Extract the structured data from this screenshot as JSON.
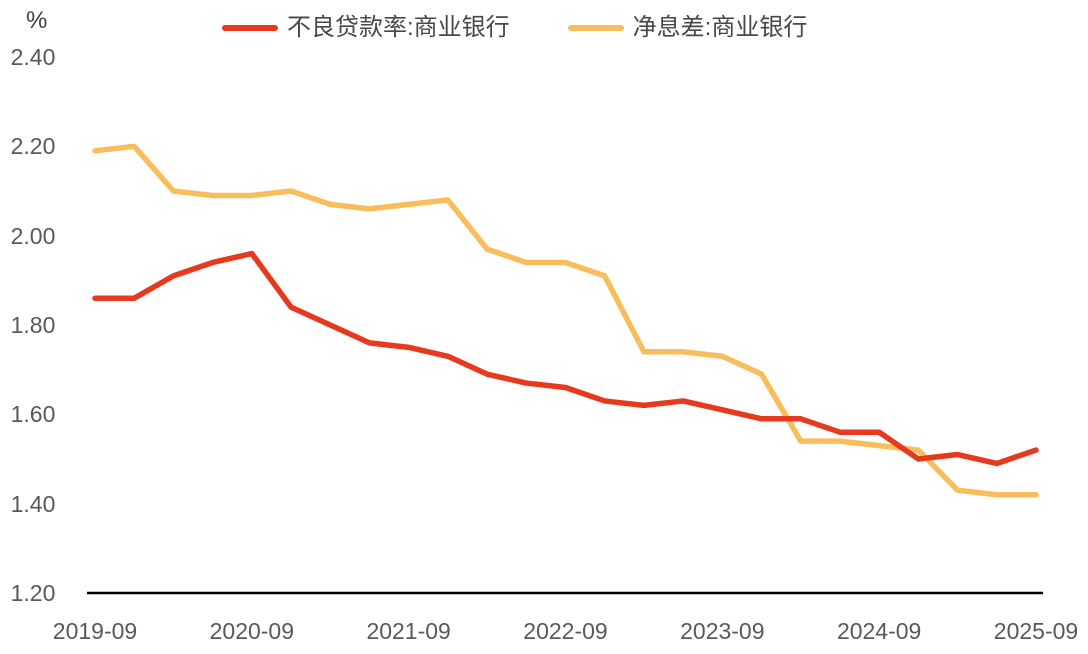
{
  "chart_data": {
    "type": "line",
    "title": "",
    "ylabel": "%",
    "xlabel": "",
    "ylim": [
      1.2,
      2.4
    ],
    "grid": false,
    "legend_position": "top-center",
    "yticks": [
      "2.40",
      "2.20",
      "2.00",
      "1.80",
      "1.60",
      "1.40",
      "1.20"
    ],
    "xticks": [
      "2019-09",
      "2020-09",
      "2021-09",
      "2022-09",
      "2023-09",
      "2024-09",
      "2025-09"
    ],
    "categories": [
      "2019-09",
      "2019-12",
      "2020-03",
      "2020-06",
      "2020-09",
      "2020-12",
      "2021-03",
      "2021-06",
      "2021-09",
      "2021-12",
      "2022-03",
      "2022-06",
      "2022-09",
      "2022-12",
      "2023-03",
      "2023-06",
      "2023-09",
      "2023-12",
      "2024-03",
      "2024-06",
      "2024-09",
      "2024-12",
      "2025-03",
      "2025-06",
      "2025-09"
    ],
    "series": [
      {
        "name": "不良贷款率:商业银行",
        "color": "#E7391E",
        "values": [
          1.86,
          1.86,
          1.91,
          1.94,
          1.96,
          1.84,
          1.8,
          1.76,
          1.75,
          1.73,
          1.69,
          1.67,
          1.66,
          1.63,
          1.62,
          1.63,
          1.61,
          1.59,
          1.59,
          1.56,
          1.56,
          1.5,
          1.51,
          1.49,
          1.52
        ]
      },
      {
        "name": "净息差:商业银行",
        "color": "#F9BE5C",
        "values": [
          2.19,
          2.2,
          2.1,
          2.09,
          2.09,
          2.1,
          2.07,
          2.06,
          2.07,
          2.08,
          1.97,
          1.94,
          1.94,
          1.91,
          1.74,
          1.74,
          1.73,
          1.69,
          1.54,
          1.54,
          1.53,
          1.52,
          1.43,
          1.42,
          1.42
        ]
      }
    ],
    "colors": {
      "axis_text": "#595959",
      "axis_line": "#000000",
      "legend_text": "#484848",
      "background": "#ffffff"
    }
  }
}
